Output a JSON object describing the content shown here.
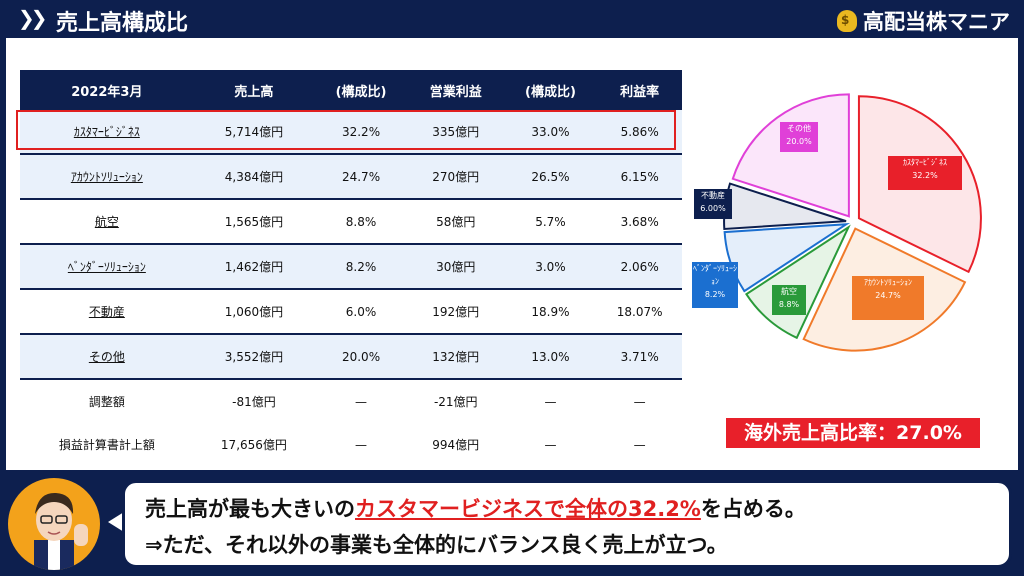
{
  "header": {
    "title": "売上高構成比",
    "brand": "高配当株マニア",
    "brand_icon": "money-bag-icon"
  },
  "table": {
    "columns": [
      "2022年3月",
      "売上高",
      "(構成比)",
      "営業利益",
      "(構成比)",
      "利益率"
    ],
    "rows": [
      {
        "segment": "ｶｽﾀﾏｰﾋﾞｼﾞﾈｽ",
        "sales": "5,714億円",
        "sales_ratio": "32.2%",
        "op_profit": "335億円",
        "op_ratio": "33.0%",
        "margin": "5.86%"
      },
      {
        "segment": "ｱｶｳﾝﾄｿﾘｭｰｼｮﾝ",
        "sales": "4,384億円",
        "sales_ratio": "24.7%",
        "op_profit": "270億円",
        "op_ratio": "26.5%",
        "margin": "6.15%"
      },
      {
        "segment": "航空",
        "sales": "1,565億円",
        "sales_ratio": "8.8%",
        "op_profit": "58億円",
        "op_ratio": "5.7%",
        "margin": "3.68%"
      },
      {
        "segment": "ﾍﾞﾝﾀﾞｰｿﾘｭｰｼｮﾝ",
        "sales": "1,462億円",
        "sales_ratio": "8.2%",
        "op_profit": "30億円",
        "op_ratio": "3.0%",
        "margin": "2.06%"
      },
      {
        "segment": "不動産",
        "sales": "1,060億円",
        "sales_ratio": "6.0%",
        "op_profit": "192億円",
        "op_ratio": "18.9%",
        "margin": "18.07%"
      },
      {
        "segment": "その他",
        "sales": "3,552億円",
        "sales_ratio": "20.0%",
        "op_profit": "132億円",
        "op_ratio": "13.0%",
        "margin": "3.71%"
      },
      {
        "segment": "調整額",
        "sales": "-81億円",
        "sales_ratio": "—",
        "op_profit": "-21億円",
        "op_ratio": "—",
        "margin": "—"
      },
      {
        "segment": "損益計算書計上額",
        "sales": "17,656億円",
        "sales_ratio": "—",
        "op_profit": "994億円",
        "op_ratio": "—",
        "margin": "—"
      }
    ]
  },
  "chart_data": {
    "type": "pie",
    "slices": [
      {
        "name": "ｶｽﾀﾏｰﾋﾞｼﾞﾈｽ",
        "value": 32.2,
        "label": "32.2%",
        "color": "#e8202a",
        "fill": "#fde6e8"
      },
      {
        "name": "ｱｶｳﾝﾄｿﾘｭｰｼｮﾝ",
        "value": 24.7,
        "label": "24.7%",
        "color": "#f07a2a",
        "fill": "#fdeee2"
      },
      {
        "name": "航空",
        "value": 8.8,
        "label": "8.8%",
        "color": "#2a9a3a",
        "fill": "#e6f4e6"
      },
      {
        "name": "ﾍﾞﾝﾀﾞｰｿﾘｭｰｼｮﾝ",
        "value": 8.2,
        "label": "8.2%",
        "color": "#1b6fd0",
        "fill": "#e4eefa"
      },
      {
        "name": "不動産",
        "value": 6.0,
        "label": "6.00%",
        "color": "#0d1f4e",
        "fill": "#e6e8ef"
      },
      {
        "name": "その他",
        "value": 20.0,
        "label": "20.0%",
        "color": "#e040d8",
        "fill": "#fbe6fa"
      }
    ]
  },
  "overseas": "海外売上高比率：27.0%",
  "comment": {
    "line1_pre": "売上高が最も大きいの",
    "line1_red": "カスタマービジネスで全体の32.2%",
    "line1_post": "を占める。",
    "line2": "⇒ただ、それ以外の事業も全体的にバランス良く売上が立つ。"
  }
}
